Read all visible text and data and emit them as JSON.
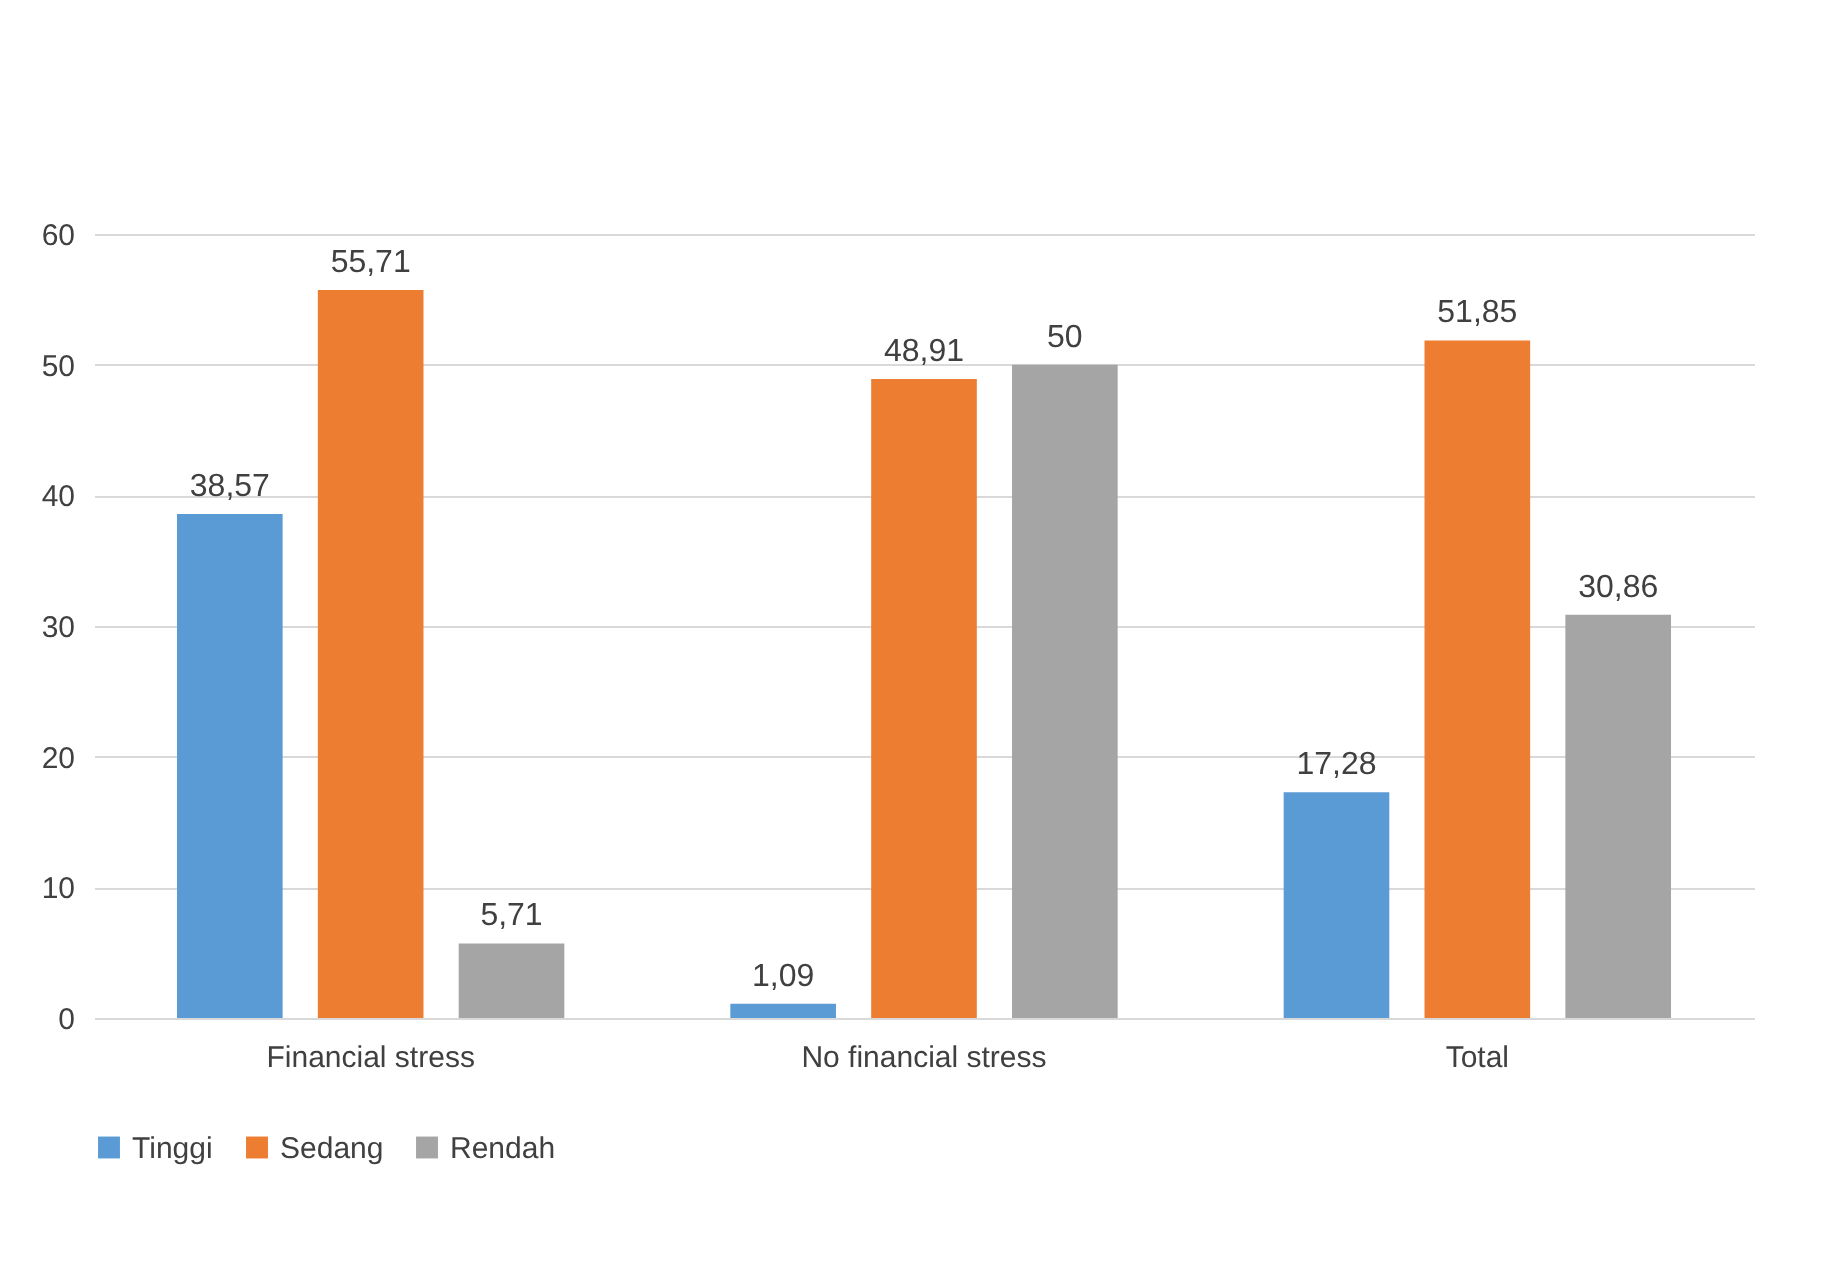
{
  "chart_data": {
    "type": "bar",
    "categories": [
      "Financial stress",
      "No financial stress",
      "Total"
    ],
    "series": [
      {
        "name": "Tinggi",
        "color": "#5b9bd5",
        "values": [
          38.57,
          1.09,
          17.28
        ],
        "value_labels": [
          "38,57",
          "1,09",
          "17,28"
        ]
      },
      {
        "name": "Sedang",
        "color": "#ed7d31",
        "values": [
          55.71,
          48.91,
          51.85
        ],
        "value_labels": [
          "55,71",
          "48,91",
          "51,85"
        ]
      },
      {
        "name": "Rendah",
        "color": "#a5a5a5",
        "values": [
          5.71,
          50,
          30.86
        ],
        "value_labels": [
          "5,71",
          "50",
          "30,86"
        ]
      }
    ],
    "ylim": [
      0,
      60
    ],
    "yticks": [
      0,
      10,
      20,
      30,
      40,
      50,
      60
    ],
    "grid": "y",
    "legend": "bottom"
  }
}
